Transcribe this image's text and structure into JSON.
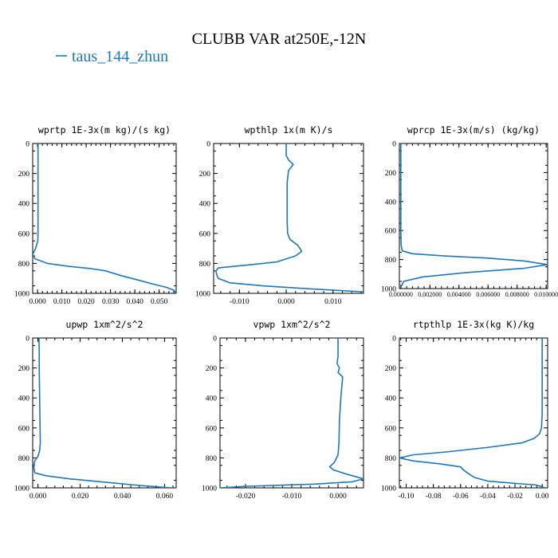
{
  "title": "CLUBB VAR at250E,-12N",
  "legend": {
    "label": "taus_144_zhun",
    "color": "#1f77b4"
  },
  "chart_data": [
    {
      "type": "line",
      "title": "wprtp  1E-3x(m kg)/(s kg)",
      "xlim": [
        -0.002,
        0.057
      ],
      "ylim": [
        1000,
        0
      ],
      "y_reversed": true,
      "xticks": [
        0.0,
        0.01,
        0.02,
        0.03,
        0.04,
        0.05
      ],
      "xtick_labels": [
        "0.000",
        "0.010",
        "0.020",
        "0.030",
        "0.040",
        "0.050"
      ],
      "yticks": [
        0,
        200,
        400,
        600,
        800,
        1000
      ],
      "ytick_labels": [
        "0",
        "200",
        "400",
        "600",
        "800",
        "1000"
      ],
      "series": [
        {
          "color": "#1f77b4",
          "x": [
            0.0002,
            0.0002,
            0.0002,
            0.0002,
            0.0002,
            0.0002,
            0.0002,
            0.0001,
            -0.0008,
            -0.002,
            -0.001,
            0.004,
            0.013,
            0.022,
            0.028,
            0.034,
            0.041,
            0.048,
            0.053,
            0.0562,
            0.0565,
            0.0555
          ],
          "y": [
            0,
            100,
            200,
            300,
            400,
            500,
            600,
            650,
            700,
            740,
            770,
            800,
            820,
            835,
            850,
            880,
            910,
            940,
            960,
            980,
            990,
            1000
          ]
        }
      ]
    },
    {
      "type": "line",
      "title": "wpthlp  1x(m K)/s",
      "xlim": [
        -0.0155,
        0.0165
      ],
      "ylim": [
        1000,
        0
      ],
      "y_reversed": true,
      "xticks": [
        -0.01,
        0.0,
        0.01
      ],
      "xtick_labels": [
        "-0.010",
        "0.000",
        "0.010"
      ],
      "yticks": [
        0,
        200,
        400,
        600,
        800,
        1000
      ],
      "ytick_labels": [
        "0",
        "200",
        "400",
        "600",
        "800",
        "1000"
      ],
      "series": [
        {
          "color": "#1f77b4",
          "x": [
            0.0,
            0.0,
            0.0005,
            0.0015,
            0.0005,
            0.0002,
            0.0002,
            0.0002,
            0.0003,
            0.0008,
            0.0025,
            0.0033,
            0.002,
            -0.002,
            -0.008,
            -0.0145,
            -0.015,
            -0.0148,
            -0.0145,
            -0.012,
            -0.005,
            0.005,
            0.0165
          ],
          "y": [
            0,
            80,
            110,
            140,
            180,
            260,
            400,
            520,
            600,
            640,
            680,
            720,
            750,
            790,
            810,
            830,
            850,
            880,
            900,
            930,
            950,
            970,
            990
          ]
        }
      ]
    },
    {
      "type": "line",
      "title": "wprcp  1E-3x(m/s) (kg/kg)",
      "xlim": [
        -0.0001,
        0.0101
      ],
      "ylim": [
        1000,
        0
      ],
      "y_reversed": true,
      "xticks": [
        0.0,
        0.002,
        0.004,
        0.006,
        0.008,
        0.01
      ],
      "xtick_labels": [
        "0.000000",
        "0.002000",
        "0.004000",
        "0.006000",
        "0.008000",
        "0.010000"
      ],
      "yticks": [
        0,
        200,
        400,
        600,
        800,
        1000
      ],
      "ytick_labels": [
        "0",
        "200",
        "400",
        "600",
        "800",
        "1000"
      ],
      "series": [
        {
          "color": "#1f77b4",
          "x": [
            0.0,
            0.0,
            0.0,
            2e-05,
            0.0001,
            0.0008,
            0.003,
            0.006,
            0.0085,
            0.0101,
            0.0085,
            0.0045,
            0.0015,
            0.0002,
            0.0
          ],
          "y": [
            0,
            300,
            600,
            700,
            740,
            760,
            775,
            790,
            810,
            835,
            860,
            890,
            920,
            950,
            990
          ]
        }
      ]
    },
    {
      "type": "line",
      "title": "upwp  1xm^2/s^2",
      "xlim": [
        -0.0025,
        0.0655
      ],
      "ylim": [
        1000,
        0
      ],
      "y_reversed": true,
      "xticks": [
        0.0,
        0.02,
        0.04,
        0.06
      ],
      "xtick_labels": [
        "0.000",
        "0.020",
        "0.040",
        "0.060"
      ],
      "yticks": [
        0,
        200,
        400,
        600,
        800,
        1000
      ],
      "ytick_labels": [
        "0",
        "200",
        "400",
        "600",
        "800",
        "1000"
      ],
      "series": [
        {
          "color": "#1f77b4",
          "x": [
            0.0005,
            0.0006,
            0.0006,
            0.0007,
            0.0008,
            0.0009,
            0.001,
            0.0011,
            0.0008,
            0.0,
            -0.0015,
            -0.002,
            -0.0015,
            0.004,
            0.015,
            0.03,
            0.045,
            0.058,
            0.0635,
            0.064
          ],
          "y": [
            0,
            100,
            200,
            300,
            400,
            500,
            600,
            700,
            750,
            790,
            820,
            860,
            900,
            920,
            940,
            960,
            980,
            995,
            1000,
            995
          ]
        }
      ]
    },
    {
      "type": "line",
      "title": "vpwp  1xm^2/s^2",
      "xlim": [
        -0.0255,
        0.0055
      ],
      "ylim": [
        1000,
        0
      ],
      "y_reversed": true,
      "xticks": [
        -0.02,
        -0.01,
        0.0
      ],
      "xtick_labels": [
        "-0.020",
        "-0.010",
        "0.000"
      ],
      "yticks": [
        0,
        200,
        400,
        600,
        800,
        1000
      ],
      "ytick_labels": [
        "0",
        "200",
        "400",
        "600",
        "800",
        "1000"
      ],
      "series": [
        {
          "color": "#1f77b4",
          "x": [
            0.0,
            0.0,
            -0.0002,
            0.0003,
            0.0,
            0.001,
            0.0006,
            0.0003,
            0.0002,
            0.0,
            -0.0008,
            -0.0018,
            -0.001,
            0.002,
            0.0055,
            0.003,
            -0.005,
            -0.02,
            -0.0255
          ],
          "y": [
            0,
            120,
            170,
            200,
            230,
            260,
            400,
            550,
            700,
            780,
            830,
            860,
            880,
            910,
            940,
            960,
            975,
            990,
            1000
          ]
        }
      ]
    },
    {
      "type": "line",
      "title": "rtpthlp  1E-3x(kg K)/kg",
      "xlim": [
        -0.105,
        0.004
      ],
      "ylim": [
        1000,
        0
      ],
      "y_reversed": true,
      "xticks": [
        -0.1,
        -0.08,
        -0.06,
        -0.04,
        -0.02,
        0.0
      ],
      "xtick_labels": [
        "-0.10",
        "-0.08",
        "-0.06",
        "-0.04",
        "-0.02",
        "0.00"
      ],
      "yticks": [
        0,
        200,
        400,
        600,
        800,
        1000
      ],
      "ytick_labels": [
        "0",
        "200",
        "400",
        "600",
        "800",
        "1000"
      ],
      "series": [
        {
          "color": "#1f77b4",
          "x": [
            0.0,
            0.0,
            0.0,
            -0.0005,
            -0.002,
            -0.006,
            -0.015,
            -0.04,
            -0.07,
            -0.095,
            -0.105,
            -0.095,
            -0.075,
            -0.06,
            -0.058,
            -0.055,
            -0.05,
            -0.04,
            -0.02,
            -0.005,
            -0.001,
            0.002
          ],
          "y": [
            0,
            300,
            500,
            600,
            640,
            670,
            700,
            730,
            760,
            780,
            800,
            820,
            840,
            860,
            880,
            900,
            930,
            955,
            970,
            980,
            990,
            1000
          ]
        }
      ]
    }
  ]
}
